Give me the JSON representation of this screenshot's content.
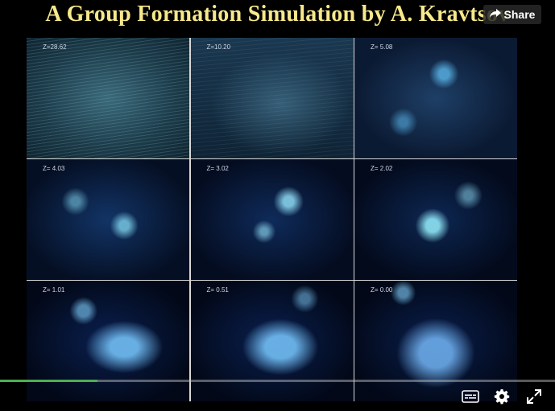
{
  "video": {
    "title": "A Group Formation Simulation by A. Kravtsov",
    "panels": [
      {
        "label": "Z=28.62"
      },
      {
        "label": "Z=10.20"
      },
      {
        "label": "Z= 5.08"
      },
      {
        "label": "Z= 4.03"
      },
      {
        "label": "Z= 3.02"
      },
      {
        "label": "Z= 2.02"
      },
      {
        "label": "Z= 1.01"
      },
      {
        "label": "Z= 0.51"
      },
      {
        "label": "Z= 0.00"
      }
    ],
    "progress_fraction": 0.175
  },
  "share": {
    "label": "Share",
    "icon": "share-arrow-icon"
  },
  "controls": {
    "captions_icon": "captions-icon",
    "settings_icon": "gear-icon",
    "fullscreen_icon": "fullscreen-icon"
  },
  "colors": {
    "title": "#f7e98a",
    "progress": "#4caf50"
  }
}
